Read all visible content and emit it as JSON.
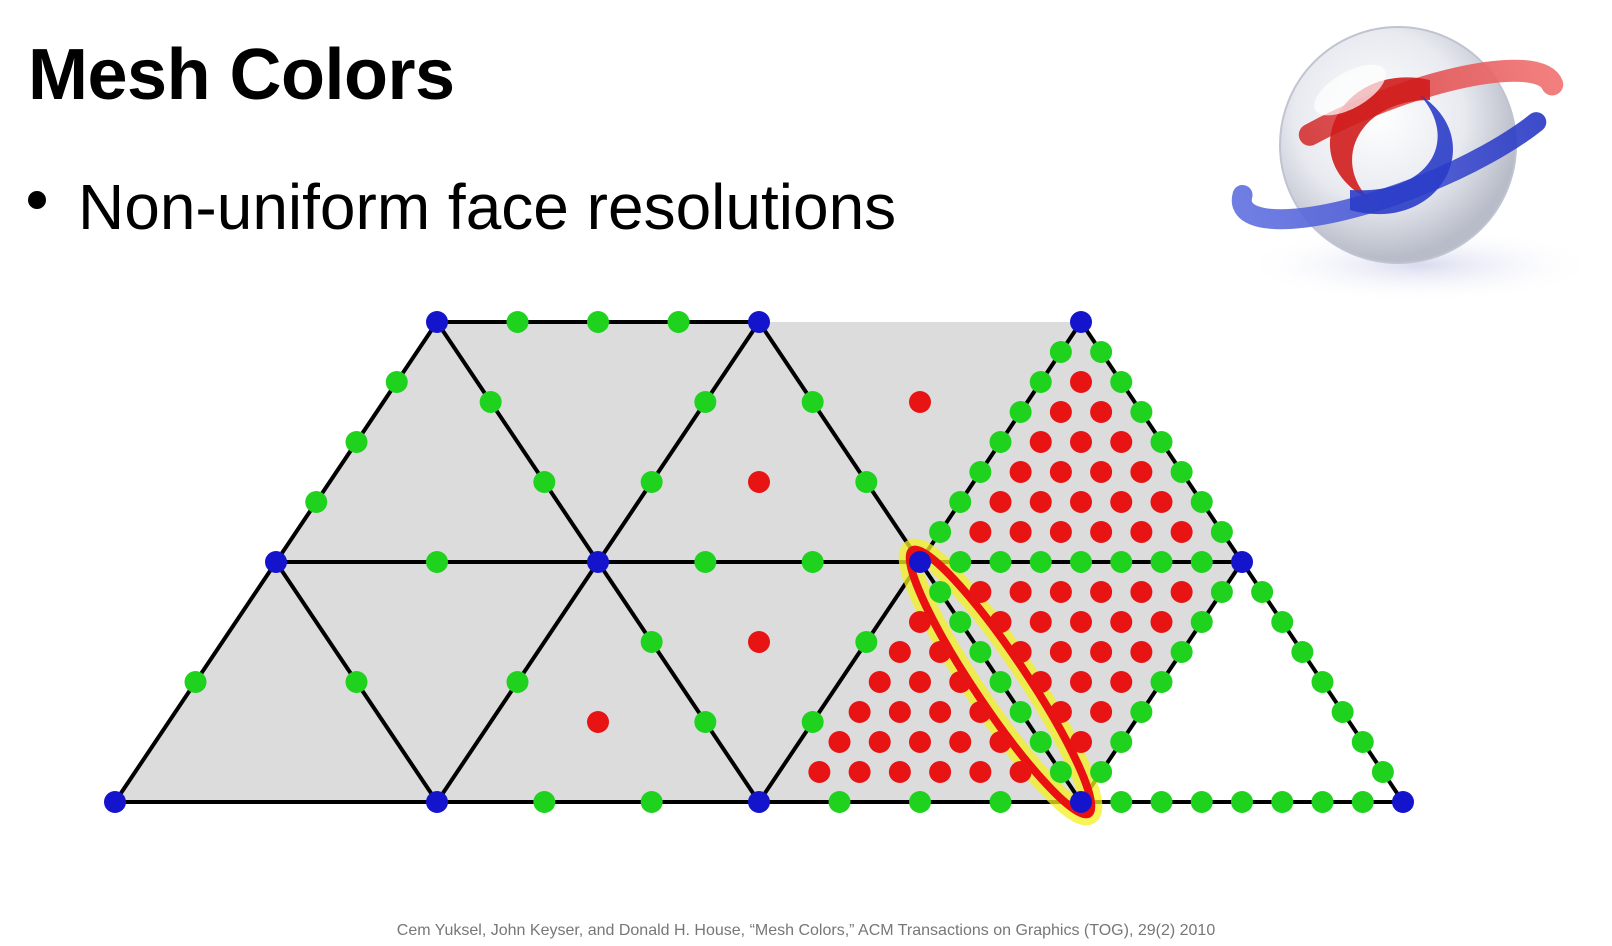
{
  "title": "Mesh Colors",
  "bullet": "Non-uniform face resolutions",
  "citation": "Cem Yuksel, John Keyser, and Donald H. House, “Mesh Colors,” ACM Transactions on Graphics (TOG), 29(2) 2010",
  "logo_icon": "sphere-rings-logo-icon",
  "colors": {
    "face_fill": "#dcdcdc",
    "edge": "#000000",
    "vertex": "#1414cc",
    "edge_color": "#1ed21e",
    "face_color": "#e81414",
    "highlight_outline": "#e81010",
    "highlight_glow": "#f4f020"
  },
  "diagram": {
    "triangles": [
      {
        "verts": [
          [
            0,
            0
          ],
          [
            1,
            0
          ],
          [
            0,
            1
          ]
        ],
        "res": 1
      },
      {
        "verts": [
          [
            1,
            0
          ],
          [
            1,
            1
          ],
          [
            0,
            1
          ]
        ],
        "res": 1
      },
      {
        "verts": [
          [
            1,
            0
          ],
          [
            2,
            0
          ],
          [
            1,
            1
          ]
        ],
        "res": 3
      },
      {
        "verts": [
          [
            2,
            0
          ],
          [
            2,
            1
          ],
          [
            1,
            1
          ]
        ],
        "res": 3
      },
      {
        "verts": [
          [
            2,
            0
          ],
          [
            3,
            0
          ],
          [
            2,
            1
          ]
        ],
        "res": 8
      },
      {
        "verts": [
          [
            3,
            0
          ],
          [
            3,
            1
          ],
          [
            2,
            1
          ]
        ],
        "res": 8
      },
      {
        "verts": [
          [
            0,
            1
          ],
          [
            1,
            1
          ],
          [
            0,
            2
          ]
        ],
        "res": 2
      },
      {
        "verts": [
          [
            1,
            1
          ],
          [
            1,
            2
          ],
          [
            0,
            2
          ]
        ],
        "res": 2
      },
      {
        "verts": [
          [
            1,
            1
          ],
          [
            2,
            1
          ],
          [
            1,
            2
          ]
        ],
        "res": 3
      },
      {
        "verts": [
          [
            2,
            1
          ],
          [
            2,
            2
          ],
          [
            1,
            2
          ]
        ],
        "res": 3
      },
      {
        "verts": [
          [
            2,
            1
          ],
          [
            3,
            1
          ],
          [
            2,
            2
          ]
        ],
        "res": 8
      }
    ],
    "edges": [
      {
        "a": [
          0,
          0
        ],
        "b": [
          1,
          0
        ],
        "res": 1
      },
      {
        "a": [
          1,
          0
        ],
        "b": [
          2,
          0
        ],
        "res": 3
      },
      {
        "a": [
          2,
          0
        ],
        "b": [
          3,
          0
        ],
        "res": 4
      },
      {
        "a": [
          3,
          0
        ],
        "b": [
          4,
          0
        ],
        "res": 8
      },
      {
        "a": [
          0,
          1
        ],
        "b": [
          1,
          1
        ],
        "res": 2
      },
      {
        "a": [
          1,
          1
        ],
        "b": [
          2,
          1
        ],
        "res": 3
      },
      {
        "a": [
          2,
          1
        ],
        "b": [
          3,
          1
        ],
        "res": 8
      },
      {
        "a": [
          0,
          2
        ],
        "b": [
          1,
          2
        ],
        "res": 4
      },
      {
        "a": [
          0,
          0
        ],
        "b": [
          0,
          1
        ],
        "res": 2
      },
      {
        "a": [
          0,
          1
        ],
        "b": [
          0,
          2
        ],
        "res": 4
      },
      {
        "a": [
          1,
          0
        ],
        "b": [
          1,
          1
        ],
        "res": 2
      },
      {
        "a": [
          1,
          1
        ],
        "b": [
          1,
          2
        ],
        "res": 3
      },
      {
        "a": [
          2,
          0
        ],
        "b": [
          2,
          1
        ],
        "res": 3
      },
      {
        "a": [
          2,
          1
        ],
        "b": [
          2,
          2
        ],
        "res": 8
      },
      {
        "a": [
          3,
          0
        ],
        "b": [
          3,
          1
        ],
        "res": 8
      },
      {
        "a": [
          1,
          0
        ],
        "b": [
          0,
          1
        ],
        "res": 2
      },
      {
        "a": [
          2,
          0
        ],
        "b": [
          1,
          1
        ],
        "res": 3
      },
      {
        "a": [
          3,
          0
        ],
        "b": [
          2,
          1
        ],
        "res": 8
      },
      {
        "a": [
          4,
          0
        ],
        "b": [
          3,
          1
        ],
        "res": 8
      },
      {
        "a": [
          1,
          1
        ],
        "b": [
          0,
          2
        ],
        "res": 3
      },
      {
        "a": [
          2,
          1
        ],
        "b": [
          1,
          2
        ],
        "res": 3
      },
      {
        "a": [
          3,
          1
        ],
        "b": [
          2,
          2
        ],
        "res": 8
      }
    ],
    "vertices": [
      [
        0,
        0
      ],
      [
        1,
        0
      ],
      [
        2,
        0
      ],
      [
        3,
        0
      ],
      [
        4,
        0
      ],
      [
        0,
        1
      ],
      [
        1,
        1
      ],
      [
        2,
        1
      ],
      [
        3,
        1
      ],
      [
        0,
        2
      ],
      [
        1,
        2
      ],
      [
        2,
        2
      ]
    ],
    "highlight_edge": {
      "a": [
        3,
        0
      ],
      "b": [
        2,
        1
      ]
    }
  }
}
